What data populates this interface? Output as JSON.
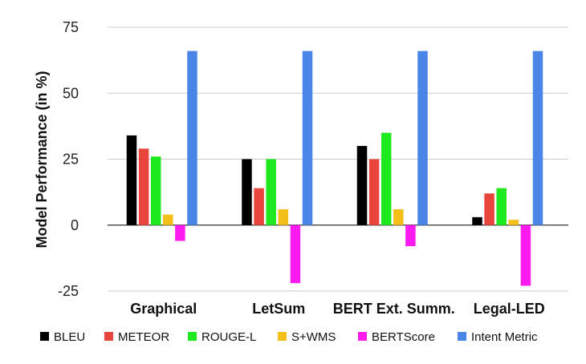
{
  "chart_data": {
    "type": "bar",
    "title": "",
    "xlabel": "",
    "ylabel": "Model Performance (in %)",
    "ylim": [
      -25,
      75
    ],
    "yticks": [
      -25,
      0,
      25,
      50,
      75
    ],
    "grid": true,
    "legend_position": "bottom",
    "categories": [
      "Graphical",
      "LetSum",
      "BERT Ext. Summ.",
      "Legal-LED"
    ],
    "series": [
      {
        "name": "BLEU",
        "color": "#000000",
        "values": [
          34,
          25,
          30,
          3
        ]
      },
      {
        "name": "METEOR",
        "color": "#e8453c",
        "values": [
          29,
          14,
          25,
          12
        ]
      },
      {
        "name": "ROUGE-L",
        "color": "#1ee81e",
        "values": [
          26,
          25,
          35,
          14
        ]
      },
      {
        "name": "S+WMS",
        "color": "#f5bf1a",
        "values": [
          4,
          6,
          6,
          2
        ]
      },
      {
        "name": "BERTScore",
        "color": "#ff1af0",
        "values": [
          -6,
          -22,
          -8,
          -23
        ]
      },
      {
        "name": "Intent Metric",
        "color": "#4a86e8",
        "values": [
          66,
          66,
          66,
          66
        ]
      }
    ]
  }
}
